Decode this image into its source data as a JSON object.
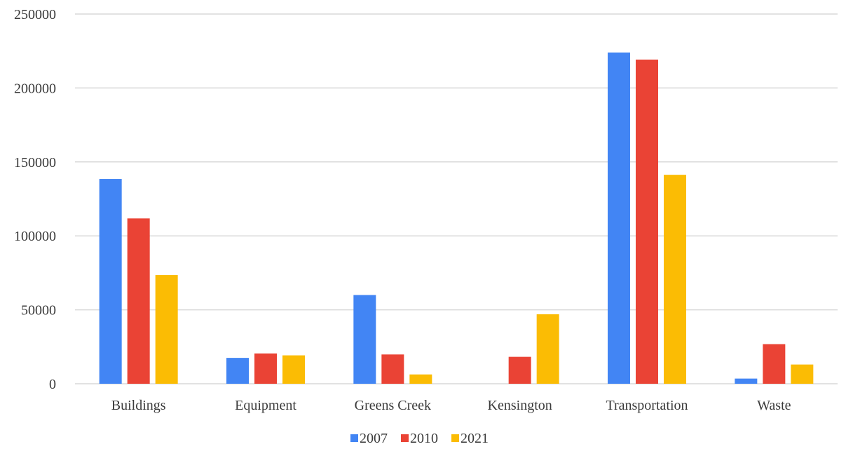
{
  "chart_data": {
    "type": "bar",
    "categories": [
      "Buildings",
      "Equipment",
      "Greens Creek",
      "Kensington",
      "Transportation",
      "Waste"
    ],
    "series": [
      {
        "name": "2007",
        "color": "#4285f4",
        "values": [
          138500,
          17500,
          60000,
          0,
          224000,
          3500
        ]
      },
      {
        "name": "2010",
        "color": "#ea4335",
        "values": [
          111800,
          20500,
          19800,
          18200,
          219200,
          26800
        ]
      },
      {
        "name": "2021",
        "color": "#fbbc04",
        "values": [
          73500,
          19200,
          6300,
          47000,
          141300,
          13000
        ]
      }
    ],
    "yticks": [
      "0",
      "50000",
      "100000",
      "150000",
      "200000",
      "250000"
    ],
    "ylim": [
      0,
      250000
    ],
    "grid": true,
    "legend_position": "bottom-center"
  }
}
